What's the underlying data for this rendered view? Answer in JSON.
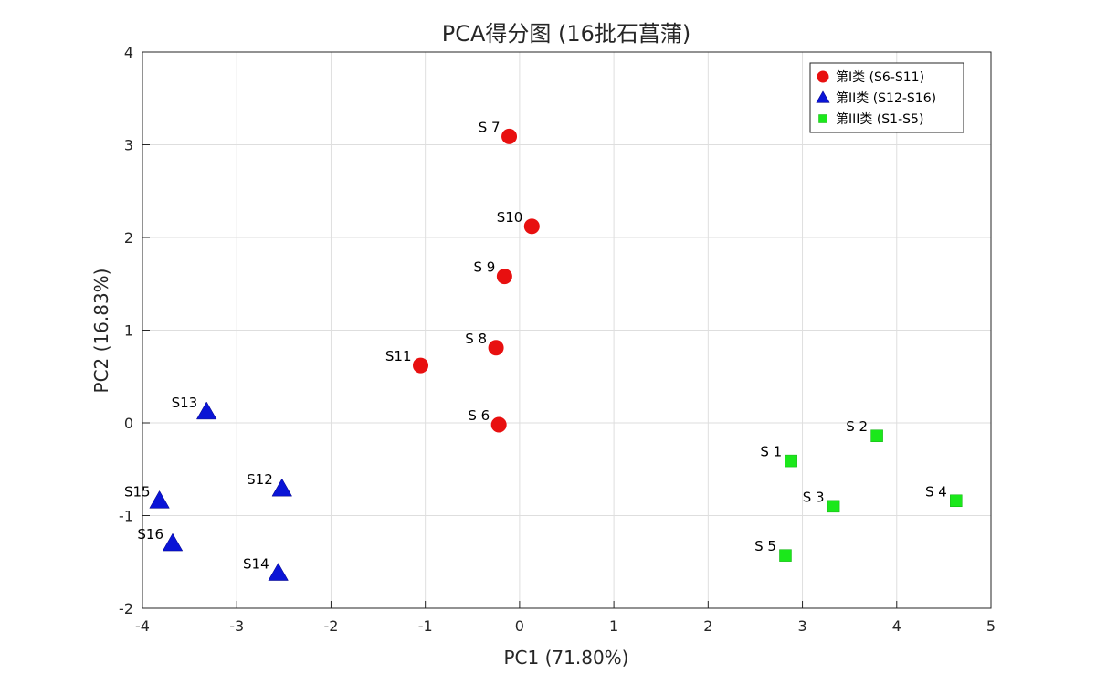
{
  "chart_data": {
    "type": "scatter",
    "title": "PCA得分图 (16批石菖蒲)",
    "xlabel": "PC1 (71.80%)",
    "ylabel": "PC2 (16.83%)",
    "xlim": [
      -4,
      5
    ],
    "ylim": [
      -2,
      4
    ],
    "xticks": [
      -4,
      -3,
      -2,
      -1,
      0,
      1,
      2,
      3,
      4,
      5
    ],
    "yticks": [
      -2,
      -1,
      0,
      1,
      2,
      3,
      4
    ],
    "xtick_labels": [
      "-4",
      "-3",
      "-2",
      "-1",
      "0",
      "1",
      "2",
      "3",
      "4",
      "5"
    ],
    "ytick_labels": [
      "-2",
      "-1",
      "0",
      "1",
      "2",
      "3",
      "4"
    ],
    "grid": true,
    "legend_position": "top-right",
    "series": [
      {
        "name": "第I类 (S6-S11)",
        "marker": "circle",
        "color": "#e81010",
        "points": [
          {
            "label": "S 6",
            "x": -0.22,
            "y": -0.02
          },
          {
            "label": "S 7",
            "x": -0.11,
            "y": 3.09
          },
          {
            "label": "S 8",
            "x": -0.25,
            "y": 0.81
          },
          {
            "label": "S 9",
            "x": -0.16,
            "y": 1.58
          },
          {
            "label": "S10",
            "x": 0.13,
            "y": 2.12
          },
          {
            "label": "S11",
            "x": -1.05,
            "y": 0.62
          }
        ]
      },
      {
        "name": "第II类 (S12-S16)",
        "marker": "triangle",
        "color": "#0a14d6",
        "points": [
          {
            "label": "S12",
            "x": -2.52,
            "y": -0.71
          },
          {
            "label": "S13",
            "x": -3.32,
            "y": 0.12
          },
          {
            "label": "S14",
            "x": -2.56,
            "y": -1.62
          },
          {
            "label": "S15",
            "x": -3.82,
            "y": -0.84
          },
          {
            "label": "S16",
            "x": -3.68,
            "y": -1.3
          }
        ]
      },
      {
        "name": "第III类 (S1-S5)",
        "marker": "square",
        "color": "#1be81b",
        "points": [
          {
            "label": "S 1",
            "x": 2.88,
            "y": -0.41
          },
          {
            "label": "S 2",
            "x": 3.79,
            "y": -0.14
          },
          {
            "label": "S 3",
            "x": 3.33,
            "y": -0.9
          },
          {
            "label": "S 4",
            "x": 4.63,
            "y": -0.84
          },
          {
            "label": "S 5",
            "x": 2.82,
            "y": -1.43
          }
        ]
      }
    ]
  }
}
